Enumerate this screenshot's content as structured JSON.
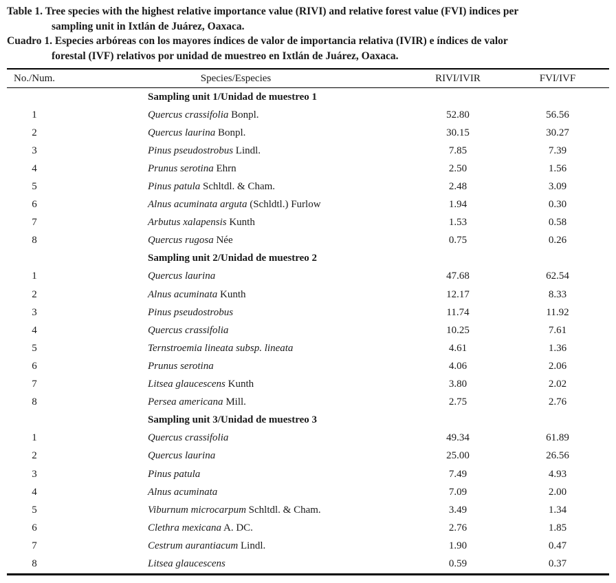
{
  "page": {
    "background": "#ffffff",
    "text_color": "#1a1a1a",
    "rule_color": "#000000"
  },
  "captions": {
    "en_line1": "Table 1. Tree species with the highest relative importance value (RIVI) and relative forest value (FVI) indices per",
    "en_line2": "sampling unit in Ixtlán de Juárez, Oaxaca.",
    "es_line1": "Cuadro 1. Especies arbóreas con los mayores índices de valor de importancia relativa (IVIR) e índices de valor",
    "es_line2": "forestal (IVF) relativos por unidad de muestreo en Ixtlán de Juárez, Oaxaca."
  },
  "table": {
    "columns": {
      "num": "No./Num.",
      "species": "Species/Especies",
      "rivi": "RIVI/IVIR",
      "fvi": "FVI/IVF"
    },
    "sections": [
      {
        "title": "Sampling unit 1/Unidad de muestreo 1",
        "rows": [
          {
            "num": "1",
            "sci": "Quercus crassifolia",
            "auth": "Bonpl.",
            "rivi": "52.80",
            "fvi": "56.56"
          },
          {
            "num": "2",
            "sci": "Quercus laurina",
            "auth": "Bonpl.",
            "rivi": "30.15",
            "fvi": "30.27"
          },
          {
            "num": "3",
            "sci": "Pinus pseudostrobus",
            "auth": "Lindl.",
            "rivi": "7.85",
            "fvi": "7.39"
          },
          {
            "num": "4",
            "sci": "Prunus serotina",
            "auth": "Ehrn",
            "rivi": "2.50",
            "fvi": "1.56"
          },
          {
            "num": "5",
            "sci": "Pinus patula",
            "auth": "Schltdl. & Cham.",
            "rivi": "2.48",
            "fvi": "3.09"
          },
          {
            "num": "6",
            "sci": "Alnus acuminata arguta",
            "auth": "(Schldtl.) Furlow",
            "rivi": "1.94",
            "fvi": "0.30"
          },
          {
            "num": "7",
            "sci": "Arbutus xalapensis",
            "auth": "Kunth",
            "rivi": "1.53",
            "fvi": "0.58"
          },
          {
            "num": "8",
            "sci": "Quercus rugosa",
            "auth": "Née",
            "rivi": "0.75",
            "fvi": "0.26"
          }
        ]
      },
      {
        "title": "Sampling unit 2/Unidad de muestreo 2",
        "rows": [
          {
            "num": "1",
            "sci": "Quercus laurina",
            "auth": "",
            "rivi": "47.68",
            "fvi": "62.54"
          },
          {
            "num": "2",
            "sci": "Alnus acuminata",
            "auth": "Kunth",
            "rivi": "12.17",
            "fvi": "8.33"
          },
          {
            "num": "3",
            "sci": "Pinus pseudostrobus",
            "auth": "",
            "rivi": "11.74",
            "fvi": "11.92"
          },
          {
            "num": "4",
            "sci": "Quercus crassifolia",
            "auth": "",
            "rivi": "10.25",
            "fvi": "7.61"
          },
          {
            "num": "5",
            "sci": "Ternstroemia lineata subsp. lineata",
            "auth": "",
            "rivi": "4.61",
            "fvi": "1.36"
          },
          {
            "num": "6",
            "sci": "Prunus serotina",
            "auth": "",
            "rivi": "4.06",
            "fvi": "2.06"
          },
          {
            "num": "7",
            "sci": "Litsea glaucescens",
            "auth": "Kunth",
            "rivi": "3.80",
            "fvi": "2.02"
          },
          {
            "num": "8",
            "sci": "Persea americana",
            "auth": "Mill.",
            "rivi": "2.75",
            "fvi": "2.76"
          }
        ]
      },
      {
        "title": "Sampling unit 3/Unidad de muestreo 3",
        "rows": [
          {
            "num": "1",
            "sci": "Quercus crassifolia",
            "auth": "",
            "rivi": "49.34",
            "fvi": "61.89"
          },
          {
            "num": "2",
            "sci": "Quercus laurina",
            "auth": "",
            "rivi": "25.00",
            "fvi": "26.56"
          },
          {
            "num": "3",
            "sci": "Pinus patula",
            "auth": "",
            "rivi": "7.49",
            "fvi": "4.93"
          },
          {
            "num": "4",
            "sci": "Alnus acuminata",
            "auth": "",
            "rivi": "7.09",
            "fvi": "2.00"
          },
          {
            "num": "5",
            "sci": "Viburnum microcarpum",
            "auth": "Schltdl. & Cham.",
            "rivi": "3.49",
            "fvi": "1.34"
          },
          {
            "num": "6",
            "sci": "Clethra mexicana",
            "auth": "A. DC.",
            "rivi": "2.76",
            "fvi": "1.85"
          },
          {
            "num": "7",
            "sci": "Cestrum aurantiacum",
            "auth": "Lindl.",
            "rivi": "1.90",
            "fvi": "0.47"
          },
          {
            "num": "8",
            "sci": "Litsea glaucescens",
            "auth": "",
            "rivi": "0.59",
            "fvi": "0.37"
          }
        ]
      }
    ]
  }
}
